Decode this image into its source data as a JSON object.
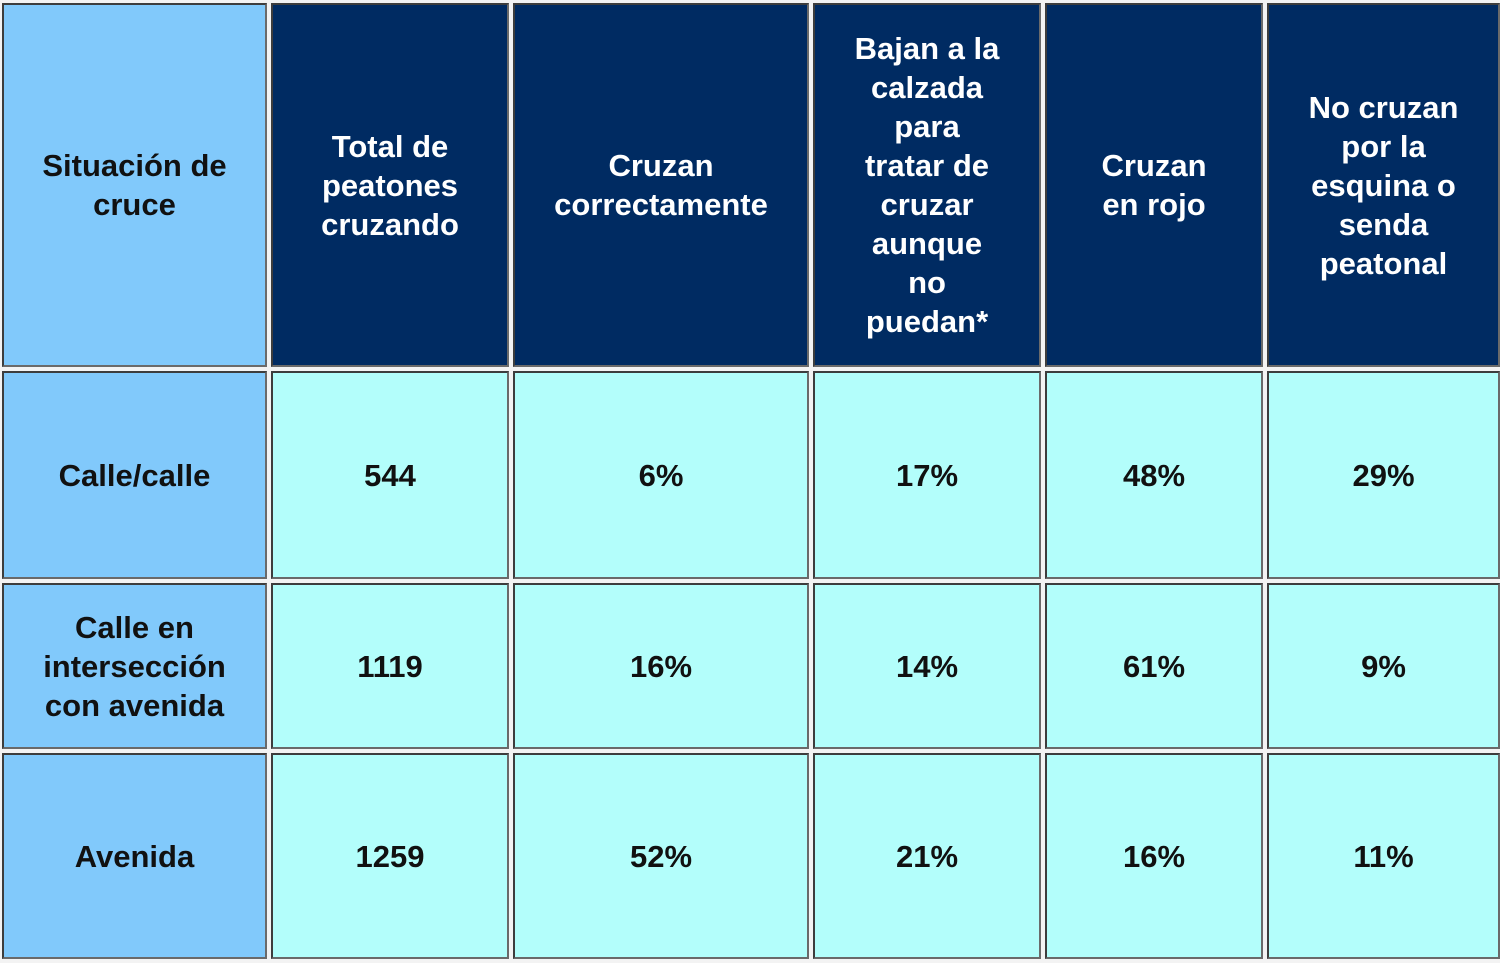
{
  "table": {
    "corner_header": "Situación de\ncruce",
    "column_headers": [
      "Total de\npeatones\ncruzando",
      "Cruzan\ncorrectamente",
      "Bajan a la\ncalzada\npara\ntratar de\ncruzar\naunque\nno\npuedan*",
      "Cruzan\nen rojo",
      "No cruzan\npor la\nesquina o\nsenda\npeatonal"
    ],
    "rows": [
      {
        "label": "Calle/calle",
        "values": [
          "544",
          "6%",
          "17%",
          "48%",
          "29%"
        ]
      },
      {
        "label": "Calle en\nintersección\ncon avenida",
        "values": [
          "1119",
          "16%",
          "14%",
          "61%",
          "9%"
        ]
      },
      {
        "label": "Avenida",
        "values": [
          "1259",
          "52%",
          "21%",
          "16%",
          "11%"
        ]
      }
    ]
  },
  "colors": {
    "header_dark": "#002b62",
    "row_header_light_blue": "#81c9fb",
    "data_cell_cyan": "#b3fefb",
    "header_text": "#ffffff",
    "body_text": "#111111"
  }
}
